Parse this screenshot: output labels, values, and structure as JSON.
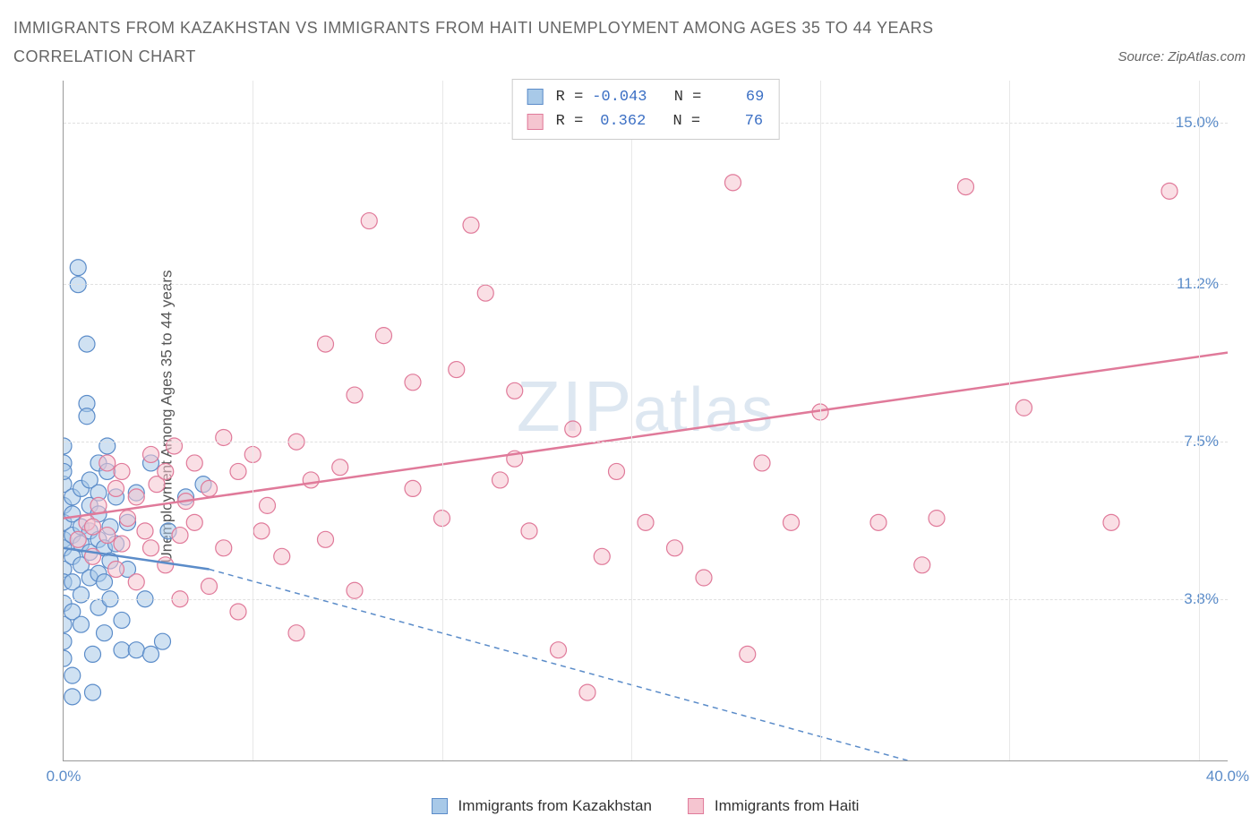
{
  "title": "IMMIGRANTS FROM KAZAKHSTAN VS IMMIGRANTS FROM HAITI UNEMPLOYMENT AMONG AGES 35 TO 44 YEARS CORRELATION CHART",
  "source": "Source: ZipAtlas.com",
  "ylabel": "Unemployment Among Ages 35 to 44 years",
  "watermark_zip": "ZIP",
  "watermark_atlas": "atlas",
  "chart": {
    "type": "scatter",
    "xlim": [
      0,
      40
    ],
    "ylim": [
      0,
      16
    ],
    "background_color": "#ffffff",
    "grid_color": "#e0e0e0",
    "axis_color": "#999999",
    "tick_color": "#5b8cc9",
    "x_ticks": [
      {
        "v": 0,
        "label": "0.0%"
      },
      {
        "v": 40,
        "label": "40.0%"
      }
    ],
    "y_ticks": [
      {
        "v": 3.8,
        "label": "3.8%"
      },
      {
        "v": 7.5,
        "label": "7.5%"
      },
      {
        "v": 11.2,
        "label": "11.2%"
      },
      {
        "v": 15.0,
        "label": "15.0%"
      }
    ],
    "x_gridlines": [
      6.5,
      13,
      19.5,
      26,
      32.5,
      39
    ],
    "series": [
      {
        "name": "Immigrants from Kazakhstan",
        "color_fill": "#a8c9e8",
        "color_stroke": "#5b8cc9",
        "marker_radius": 9,
        "R": "-0.043",
        "N": "69",
        "trend": {
          "x1": 0,
          "y1": 5.0,
          "x2": 5.0,
          "y2": 4.5,
          "solid": true,
          "dash_x2": 29,
          "dash_y2": 0
        },
        "points": [
          [
            0.0,
            5.2
          ],
          [
            0.0,
            5.6
          ],
          [
            0.0,
            6.0
          ],
          [
            0.0,
            5.0
          ],
          [
            0.0,
            4.5
          ],
          [
            0.0,
            4.2
          ],
          [
            0.0,
            3.7
          ],
          [
            0.0,
            3.2
          ],
          [
            0.0,
            2.8
          ],
          [
            0.0,
            2.4
          ],
          [
            0.0,
            7.0
          ],
          [
            0.0,
            7.4
          ],
          [
            0.0,
            6.5
          ],
          [
            0.0,
            6.8
          ],
          [
            0.3,
            5.3
          ],
          [
            0.3,
            5.8
          ],
          [
            0.3,
            6.2
          ],
          [
            0.3,
            4.8
          ],
          [
            0.3,
            4.2
          ],
          [
            0.3,
            3.5
          ],
          [
            0.3,
            2.0
          ],
          [
            0.3,
            1.5
          ],
          [
            0.5,
            11.6
          ],
          [
            0.5,
            11.2
          ],
          [
            0.6,
            5.1
          ],
          [
            0.6,
            5.5
          ],
          [
            0.6,
            4.6
          ],
          [
            0.6,
            3.9
          ],
          [
            0.6,
            3.2
          ],
          [
            0.6,
            6.4
          ],
          [
            0.8,
            8.4
          ],
          [
            0.8,
            8.1
          ],
          [
            0.8,
            9.8
          ],
          [
            0.9,
            5.4
          ],
          [
            0.9,
            4.9
          ],
          [
            0.9,
            4.3
          ],
          [
            0.9,
            6.0
          ],
          [
            0.9,
            6.6
          ],
          [
            1.0,
            2.5
          ],
          [
            1.0,
            1.6
          ],
          [
            1.2,
            5.2
          ],
          [
            1.2,
            5.8
          ],
          [
            1.2,
            4.4
          ],
          [
            1.2,
            3.6
          ],
          [
            1.2,
            6.3
          ],
          [
            1.2,
            7.0
          ],
          [
            1.4,
            5.0
          ],
          [
            1.4,
            4.2
          ],
          [
            1.4,
            3.0
          ],
          [
            1.5,
            6.8
          ],
          [
            1.5,
            7.4
          ],
          [
            1.6,
            5.5
          ],
          [
            1.6,
            4.7
          ],
          [
            1.6,
            3.8
          ],
          [
            1.8,
            5.1
          ],
          [
            1.8,
            6.2
          ],
          [
            2.0,
            2.6
          ],
          [
            2.0,
            3.3
          ],
          [
            2.2,
            5.6
          ],
          [
            2.2,
            4.5
          ],
          [
            2.5,
            6.3
          ],
          [
            2.5,
            2.6
          ],
          [
            2.8,
            3.8
          ],
          [
            3.0,
            7.0
          ],
          [
            3.0,
            2.5
          ],
          [
            3.4,
            2.8
          ],
          [
            3.6,
            5.4
          ],
          [
            4.2,
            6.2
          ],
          [
            4.8,
            6.5
          ]
        ]
      },
      {
        "name": "Immigrants from Haiti",
        "color_fill": "#f5c5d0",
        "color_stroke": "#e07a9a",
        "marker_radius": 9,
        "R": "0.362",
        "N": "76",
        "trend": {
          "x1": 0,
          "y1": 5.7,
          "x2": 40,
          "y2": 9.6,
          "solid": true
        },
        "points": [
          [
            0.5,
            5.2
          ],
          [
            0.8,
            5.6
          ],
          [
            1.0,
            4.8
          ],
          [
            1.0,
            5.5
          ],
          [
            1.2,
            6.0
          ],
          [
            1.5,
            5.3
          ],
          [
            1.5,
            7.0
          ],
          [
            1.8,
            4.5
          ],
          [
            1.8,
            6.4
          ],
          [
            2.0,
            5.1
          ],
          [
            2.0,
            6.8
          ],
          [
            2.2,
            5.7
          ],
          [
            2.5,
            4.2
          ],
          [
            2.5,
            6.2
          ],
          [
            2.8,
            5.4
          ],
          [
            3.0,
            7.2
          ],
          [
            3.0,
            5.0
          ],
          [
            3.2,
            6.5
          ],
          [
            3.5,
            6.8
          ],
          [
            3.5,
            4.6
          ],
          [
            3.8,
            7.4
          ],
          [
            4.0,
            5.3
          ],
          [
            4.0,
            3.8
          ],
          [
            4.2,
            6.1
          ],
          [
            4.5,
            7.0
          ],
          [
            4.5,
            5.6
          ],
          [
            5.0,
            6.4
          ],
          [
            5.0,
            4.1
          ],
          [
            5.5,
            7.6
          ],
          [
            5.5,
            5.0
          ],
          [
            6.0,
            6.8
          ],
          [
            6.0,
            3.5
          ],
          [
            6.5,
            7.2
          ],
          [
            6.8,
            5.4
          ],
          [
            7.0,
            6.0
          ],
          [
            7.5,
            4.8
          ],
          [
            8.0,
            7.5
          ],
          [
            8.0,
            3.0
          ],
          [
            8.5,
            6.6
          ],
          [
            9.0,
            9.8
          ],
          [
            9.0,
            5.2
          ],
          [
            9.5,
            6.9
          ],
          [
            10.0,
            8.6
          ],
          [
            10.0,
            4.0
          ],
          [
            10.5,
            12.7
          ],
          [
            11.0,
            10.0
          ],
          [
            12.0,
            6.4
          ],
          [
            12.0,
            8.9
          ],
          [
            13.0,
            5.7
          ],
          [
            13.5,
            9.2
          ],
          [
            14.0,
            12.6
          ],
          [
            14.5,
            11.0
          ],
          [
            15.0,
            6.6
          ],
          [
            15.5,
            7.1
          ],
          [
            15.5,
            8.7
          ],
          [
            16.0,
            5.4
          ],
          [
            17.0,
            2.6
          ],
          [
            17.5,
            7.8
          ],
          [
            18.0,
            1.6
          ],
          [
            18.5,
            4.8
          ],
          [
            19.0,
            6.8
          ],
          [
            20.0,
            5.6
          ],
          [
            21.0,
            5.0
          ],
          [
            22.0,
            4.3
          ],
          [
            23.0,
            13.6
          ],
          [
            23.5,
            2.5
          ],
          [
            24.0,
            7.0
          ],
          [
            25.0,
            5.6
          ],
          [
            26.0,
            8.2
          ],
          [
            28.0,
            5.6
          ],
          [
            29.5,
            4.6
          ],
          [
            30.0,
            5.7
          ],
          [
            31.0,
            13.5
          ],
          [
            33.0,
            8.3
          ],
          [
            36.0,
            5.6
          ],
          [
            38.0,
            13.4
          ]
        ]
      }
    ],
    "stats_labels": {
      "R": "R =",
      "N": "N ="
    }
  },
  "legend": {
    "items": [
      {
        "label": "Immigrants from Kazakhstan",
        "fill": "#a8c9e8",
        "stroke": "#5b8cc9"
      },
      {
        "label": "Immigrants from Haiti",
        "fill": "#f5c5d0",
        "stroke": "#e07a9a"
      }
    ]
  }
}
